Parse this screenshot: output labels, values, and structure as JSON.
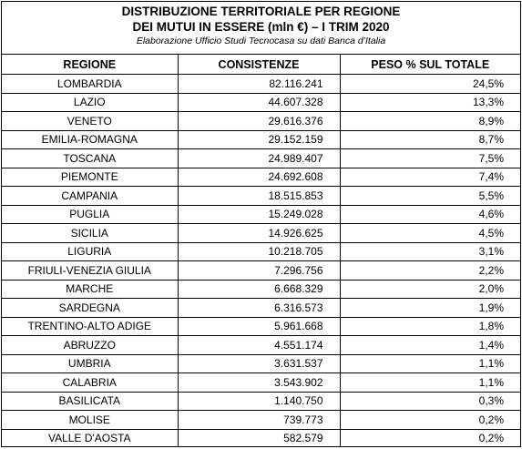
{
  "title": {
    "line1": "DISTRIBUZIONE TERRITORIALE PER REGIONE",
    "line2": "DEI MUTUI IN ESSERE (mln €) – I TRIM 2020",
    "subtitle": "Elaborazione Ufficio Studi Tecnocasa su dati Banca d’Italia"
  },
  "table": {
    "headers": [
      "REGIONE",
      "CONSISTENZE",
      "PESO % SUL TOTALE"
    ],
    "rows": [
      {
        "regione": "LOMBARDIA",
        "consistenze": "82.116.241",
        "peso": "24,5%"
      },
      {
        "regione": "LAZIO",
        "consistenze": "44.607.328",
        "peso": "13,3%"
      },
      {
        "regione": "VENETO",
        "consistenze": "29.616.376",
        "peso": "8,9%"
      },
      {
        "regione": "EMILIA-ROMAGNA",
        "consistenze": "29.152.159",
        "peso": "8,7%"
      },
      {
        "regione": "TOSCANA",
        "consistenze": "24.989.407",
        "peso": "7,5%"
      },
      {
        "regione": "PIEMONTE",
        "consistenze": "24.692.608",
        "peso": "7,4%"
      },
      {
        "regione": "CAMPANIA",
        "consistenze": "18.515.853",
        "peso": "5,5%"
      },
      {
        "regione": "PUGLIA",
        "consistenze": "15.249.028",
        "peso": "4,6%"
      },
      {
        "regione": "SICILIA",
        "consistenze": "14.926.625",
        "peso": "4,5%"
      },
      {
        "regione": "LIGURIA",
        "consistenze": "10.218.705",
        "peso": "3,1%"
      },
      {
        "regione": "FRIULI-VENEZIA GIULIA",
        "consistenze": "7.296.756",
        "peso": "2,2%"
      },
      {
        "regione": "MARCHE",
        "consistenze": "6.668.329",
        "peso": "2,0%"
      },
      {
        "regione": "SARDEGNA",
        "consistenze": "6.316.573",
        "peso": "1,9%"
      },
      {
        "regione": "TRENTINO-ALTO ADIGE",
        "consistenze": "5.961.668",
        "peso": "1,8%"
      },
      {
        "regione": "ABRUZZO",
        "consistenze": "4.551.174",
        "peso": "1,4%"
      },
      {
        "regione": "UMBRIA",
        "consistenze": "3.631.537",
        "peso": "1,1%"
      },
      {
        "regione": "CALABRIA",
        "consistenze": "3.543.902",
        "peso": "1,1%"
      },
      {
        "regione": "BASILICATA",
        "consistenze": "1.140.750",
        "peso": "0,3%"
      },
      {
        "regione": "MOLISE",
        "consistenze": "739.773",
        "peso": "0,2%"
      },
      {
        "regione": "VALLE D'AOSTA",
        "consistenze": "582.579",
        "peso": "0,2%"
      }
    ]
  }
}
